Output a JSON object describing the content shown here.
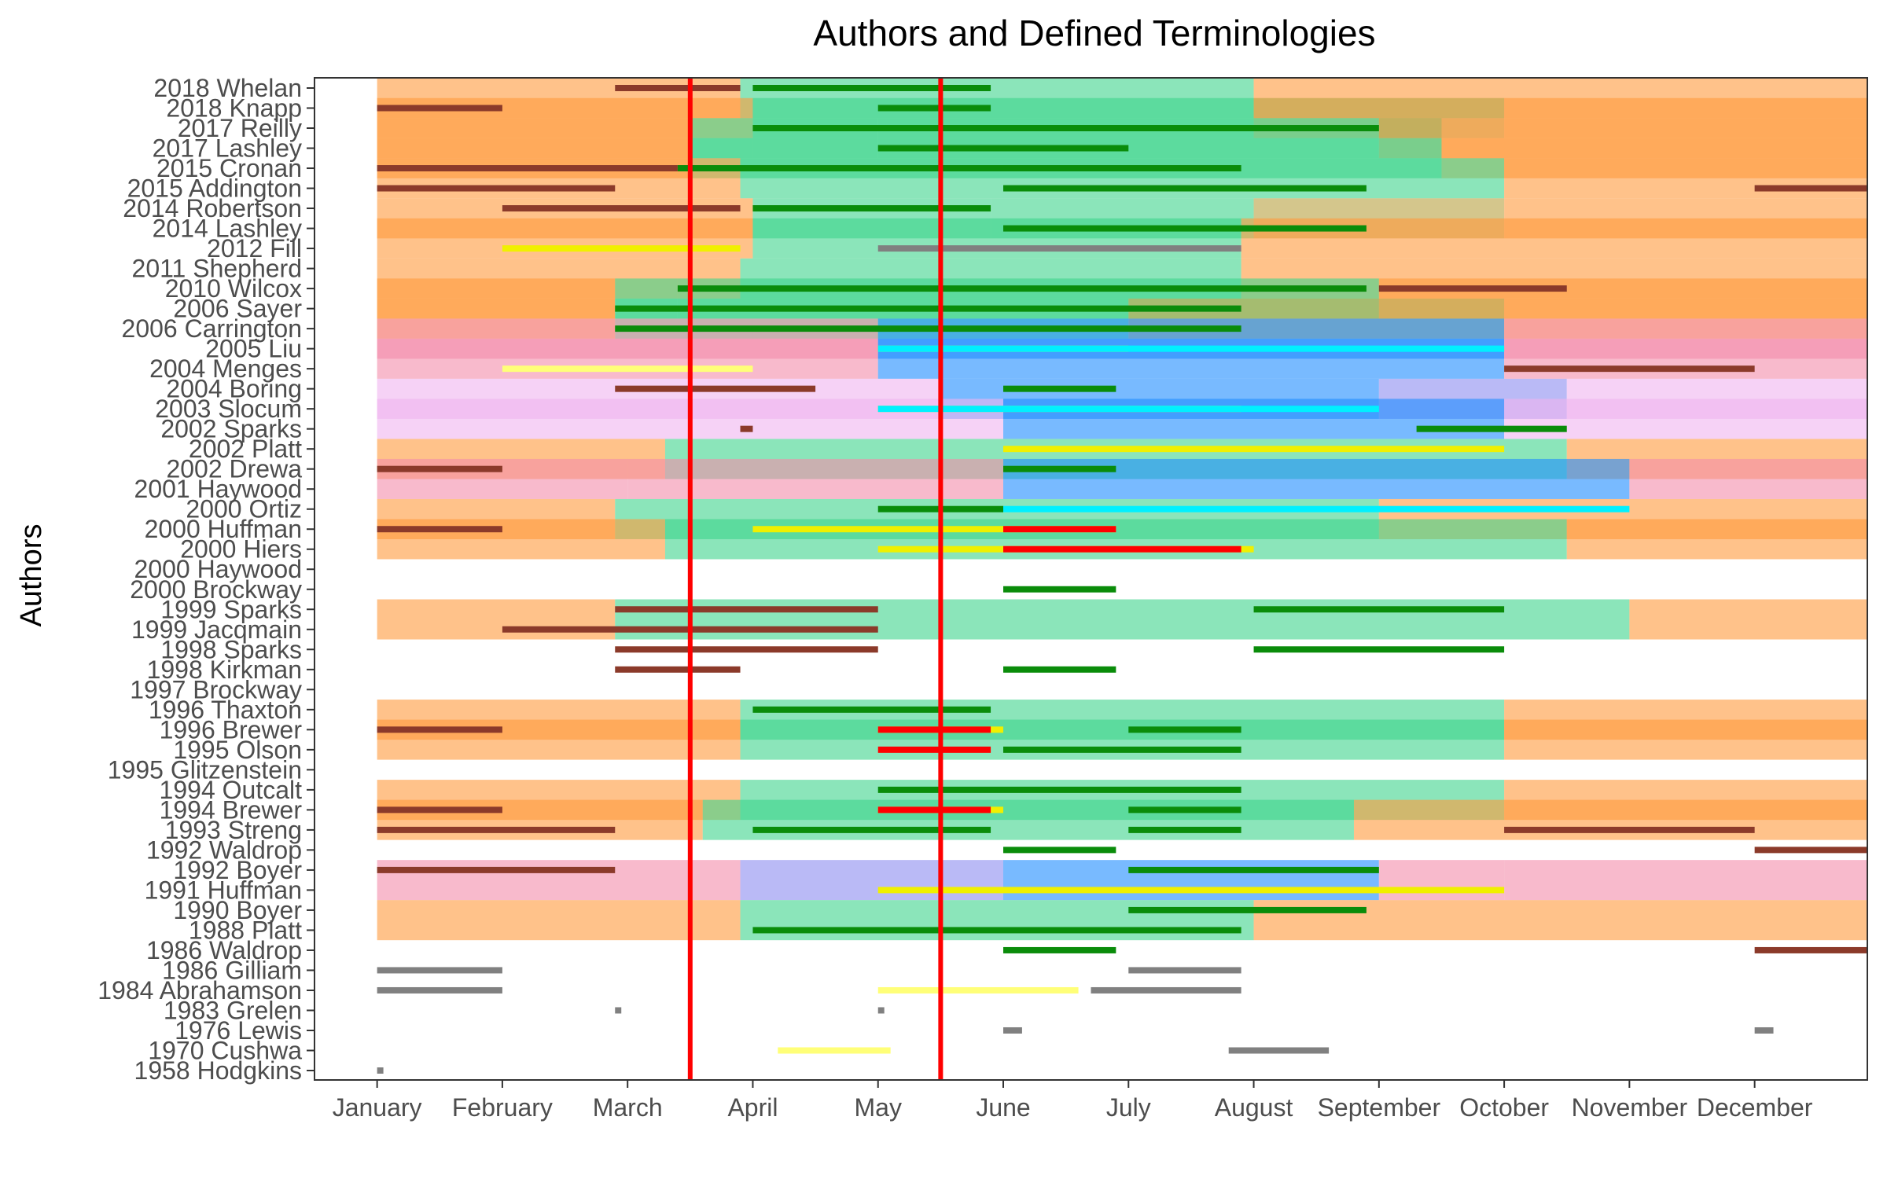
{
  "chart_data": {
    "type": "gantt",
    "title": "Authors and Defined Terminologies",
    "xlabel": "",
    "ylabel": "Authors",
    "grid": false,
    "legend": "none",
    "x_ticks": [
      "January",
      "February",
      "March",
      "April",
      "May",
      "June",
      "July",
      "August",
      "September",
      "October",
      "November",
      "December"
    ],
    "y_categories": [
      "2018 Whelan",
      "2018 Knapp",
      "2017 Reilly",
      "2017 Lashley",
      "2015 Cronan",
      "2015 Addington",
      "2014 Robertson",
      "2014 Lashley",
      "2012 Fill",
      "2011 Shepherd",
      "2010 Wilcox",
      "2006 Sayer",
      "2006 Carrington",
      "2005 Liu",
      "2004 Menges",
      "2004 Boring",
      "2003 Slocum",
      "2002 Sparks",
      "2002 Platt",
      "2002 Drewa",
      "2001 Haywood",
      "2000 Ortiz",
      "2000 Huffman",
      "2000 Hiers",
      "2000 Haywood",
      "2000 Brockway",
      "1999 Sparks",
      "1999 Jacqmain",
      "1998 Sparks",
      "1998 Kirkman",
      "1997 Brockway",
      "1996 Thaxton",
      "1996 Brewer",
      "1995 Olson",
      "1995 Glitzenstein",
      "1994 Outcalt",
      "1994 Brewer",
      "1993 Streng",
      "1992 Waldrop",
      "1992 Boyer",
      "1991 Huffman",
      "1990 Boyer",
      "1988 Platt",
      "1986 Waldrop",
      "1986 Gilliam",
      "1984 Abrahamson",
      "1983 Grelen",
      "1976 Lewis",
      "1970 Cushwa",
      "1958 Hodgkins"
    ],
    "xlim": [
      0.5,
      12.9
    ],
    "reference_lines": [
      3.5,
      5.5
    ],
    "colors": {
      "orange": "#ff9a3c",
      "green": "#3ed48c",
      "blue": "#1e8cff",
      "pink": "#f48caa",
      "violet": "#f0b4f0",
      "darkred": "#8b3a2a",
      "darkgreen": "#0a8c0a",
      "yellow": "#f0f000",
      "red": "#ff0000",
      "cyan": "#00f0ff",
      "gray": "#808080",
      "lightyellow": "#ffff78",
      "mustard": "#b8a040",
      "periwinkle": "#8c8cf0",
      "refline": "#ff0000"
    },
    "bands": [
      {
        "y0": 0,
        "y1": 2,
        "segments": [
          [
            1,
            3.9,
            "orange"
          ],
          [
            3.9,
            8.0,
            "green"
          ],
          [
            8.0,
            13.0,
            "orange"
          ]
        ]
      },
      {
        "y0": 1,
        "y1": 3,
        "segments": [
          [
            1,
            4.0,
            "orange"
          ],
          [
            4.0,
            8.0,
            "green"
          ],
          [
            8.0,
            10.0,
            "mustard"
          ],
          [
            10.0,
            13.0,
            "orange"
          ]
        ]
      },
      {
        "y0": 2,
        "y1": 4,
        "segments": [
          [
            1,
            3.5,
            "orange"
          ],
          [
            3.5,
            4.0,
            "green"
          ],
          [
            4.0,
            5.0,
            "green"
          ],
          [
            5.0,
            9.0,
            "green"
          ],
          [
            9.0,
            9.5,
            "mustard"
          ],
          [
            9.5,
            13.0,
            "orange"
          ]
        ]
      },
      {
        "y0": 3,
        "y1": 5,
        "segments": [
          [
            1,
            3.5,
            "orange"
          ],
          [
            3.5,
            9.5,
            "green"
          ],
          [
            9.5,
            13.0,
            "orange"
          ]
        ]
      },
      {
        "y0": 4,
        "y1": 6,
        "segments": [
          [
            1,
            3.9,
            "orange"
          ],
          [
            3.9,
            10.0,
            "green"
          ],
          [
            10.0,
            13.0,
            "orange"
          ]
        ]
      },
      {
        "y0": 6,
        "y1": 8,
        "segments": [
          [
            1,
            4.0,
            "orange"
          ],
          [
            4.0,
            5.9,
            "green"
          ],
          [
            5.9,
            8.0,
            "green"
          ],
          [
            8.0,
            10.0,
            "mustard"
          ],
          [
            10.0,
            13.0,
            "orange"
          ]
        ]
      },
      {
        "y0": 7,
        "y1": 9,
        "segments": [
          [
            1,
            4.0,
            "orange"
          ],
          [
            4.0,
            7.9,
            "green"
          ],
          [
            7.9,
            13.0,
            "orange"
          ]
        ]
      },
      {
        "y0": 9,
        "y1": 11,
        "segments": [
          [
            1,
            3.9,
            "orange"
          ],
          [
            3.9,
            7.9,
            "green"
          ],
          [
            7.9,
            13.0,
            "orange"
          ]
        ]
      },
      {
        "y0": 10,
        "y1": 12,
        "segments": [
          [
            1,
            2.9,
            "orange"
          ],
          [
            2.9,
            3.4,
            "green"
          ],
          [
            3.4,
            9.0,
            "green"
          ],
          [
            9.0,
            13.0,
            "orange"
          ]
        ]
      },
      {
        "y0": 11,
        "y1": 13,
        "segments": [
          [
            1,
            2.9,
            "orange"
          ],
          [
            2.9,
            7.0,
            "green"
          ],
          [
            7.0,
            10.0,
            "mustard"
          ],
          [
            10.0,
            13.0,
            "orange"
          ]
        ]
      },
      {
        "y0": 12,
        "y1": 14,
        "segments": [
          [
            1,
            4.0,
            "pink"
          ],
          [
            4.0,
            5.0,
            "pink"
          ],
          [
            5.0,
            10.0,
            "blue"
          ],
          [
            10.0,
            13.0,
            "pink"
          ]
        ]
      },
      {
        "y0": 13,
        "y1": 15,
        "segments": [
          [
            1,
            5.0,
            "pink"
          ],
          [
            5.0,
            10.0,
            "blue"
          ],
          [
            10.0,
            13.0,
            "pink"
          ]
        ]
      },
      {
        "y0": 15,
        "y1": 17,
        "segments": [
          [
            1,
            5.5,
            "violet"
          ],
          [
            5.5,
            9.0,
            "blue"
          ],
          [
            9.0,
            10.5,
            "periwinkle"
          ],
          [
            10.5,
            13.0,
            "violet"
          ]
        ]
      },
      {
        "y0": 16,
        "y1": 18,
        "segments": [
          [
            1,
            6.0,
            "violet"
          ],
          [
            6.0,
            10.0,
            "blue"
          ],
          [
            10.0,
            13.0,
            "violet"
          ]
        ]
      },
      {
        "y0": 18,
        "y1": 20,
        "segments": [
          [
            1,
            3.3,
            "orange"
          ],
          [
            3.3,
            10.5,
            "green"
          ],
          [
            10.5,
            13.0,
            "orange"
          ]
        ]
      },
      {
        "y0": 19,
        "y1": 21,
        "segments": [
          [
            1,
            3.0,
            "pink"
          ],
          [
            3.0,
            6.0,
            "pink"
          ],
          [
            6.0,
            11.0,
            "blue"
          ],
          [
            11.0,
            13.0,
            "pink"
          ]
        ]
      },
      {
        "y0": 21,
        "y1": 23,
        "segments": [
          [
            1,
            2.9,
            "orange"
          ],
          [
            2.9,
            9.0,
            "green"
          ],
          [
            9.0,
            13.0,
            "orange"
          ]
        ]
      },
      {
        "y0": 22,
        "y1": 24,
        "segments": [
          [
            1,
            3.3,
            "orange"
          ],
          [
            3.3,
            10.5,
            "green"
          ],
          [
            10.5,
            13.0,
            "orange"
          ]
        ]
      },
      {
        "y0": 26,
        "y1": 28,
        "segments": [
          [
            1,
            2.9,
            "orange"
          ],
          [
            2.9,
            11.0,
            "green"
          ],
          [
            11.0,
            13.0,
            "orange"
          ]
        ]
      },
      {
        "y0": 31,
        "y1": 33,
        "segments": [
          [
            1,
            3.9,
            "orange"
          ],
          [
            3.9,
            10.0,
            "green"
          ],
          [
            10.0,
            13.0,
            "orange"
          ]
        ]
      },
      {
        "y0": 32,
        "y1": 34,
        "segments": [
          [
            1,
            3.9,
            "orange"
          ],
          [
            3.9,
            10.0,
            "green"
          ],
          [
            10.0,
            13.0,
            "orange"
          ]
        ]
      },
      {
        "y0": 35,
        "y1": 37,
        "segments": [
          [
            1,
            3.9,
            "orange"
          ],
          [
            3.9,
            10.0,
            "green"
          ],
          [
            10.0,
            13.0,
            "orange"
          ]
        ]
      },
      {
        "y0": 36,
        "y1": 38,
        "segments": [
          [
            1,
            3.6,
            "orange"
          ],
          [
            3.6,
            8.8,
            "green"
          ],
          [
            8.8,
            13.0,
            "orange"
          ]
        ]
      },
      {
        "y0": 39,
        "y1": 41,
        "segments": [
          [
            1,
            3.9,
            "pink"
          ],
          [
            3.9,
            6.0,
            "periwinkle"
          ],
          [
            6.0,
            9.0,
            "blue"
          ],
          [
            9.0,
            10.0,
            "pink"
          ],
          [
            10.0,
            13.0,
            "pink"
          ]
        ]
      },
      {
        "y0": 41,
        "y1": 43,
        "segments": [
          [
            1,
            3.9,
            "orange"
          ],
          [
            3.9,
            8.0,
            "green"
          ],
          [
            8.0,
            13.0,
            "orange"
          ]
        ]
      }
    ],
    "lines": [
      {
        "y": 0,
        "x0": 2.9,
        "x1": 3.9,
        "color": "darkred"
      },
      {
        "y": 0,
        "x0": 4.0,
        "x1": 5.9,
        "color": "darkgreen"
      },
      {
        "y": 1,
        "x0": 1.0,
        "x1": 2.0,
        "color": "darkred"
      },
      {
        "y": 1,
        "x0": 5.0,
        "x1": 5.9,
        "color": "darkgreen"
      },
      {
        "y": 2,
        "x0": 4.0,
        "x1": 9.0,
        "color": "darkgreen"
      },
      {
        "y": 3,
        "x0": 5.0,
        "x1": 7.0,
        "color": "darkgreen"
      },
      {
        "y": 4,
        "x0": 1.0,
        "x1": 3.4,
        "color": "darkred"
      },
      {
        "y": 4,
        "x0": 3.4,
        "x1": 7.9,
        "color": "darkgreen"
      },
      {
        "y": 5,
        "x0": 1.0,
        "x1": 2.9,
        "color": "darkred"
      },
      {
        "y": 5,
        "x0": 6.0,
        "x1": 8.9,
        "color": "darkgreen"
      },
      {
        "y": 5,
        "x0": 12.0,
        "x1": 13.0,
        "color": "darkred"
      },
      {
        "y": 6,
        "x0": 2.0,
        "x1": 3.9,
        "color": "darkred"
      },
      {
        "y": 6,
        "x0": 4.0,
        "x1": 5.9,
        "color": "darkgreen"
      },
      {
        "y": 7,
        "x0": 6.0,
        "x1": 8.9,
        "color": "darkgreen"
      },
      {
        "y": 8,
        "x0": 2.0,
        "x1": 3.9,
        "color": "yellow"
      },
      {
        "y": 8,
        "x0": 5.0,
        "x1": 7.9,
        "color": "gray"
      },
      {
        "y": 10,
        "x0": 3.4,
        "x1": 8.9,
        "color": "darkgreen"
      },
      {
        "y": 10,
        "x0": 9.0,
        "x1": 10.5,
        "color": "darkred"
      },
      {
        "y": 11,
        "x0": 2.9,
        "x1": 7.9,
        "color": "darkgreen"
      },
      {
        "y": 12,
        "x0": 2.9,
        "x1": 7.9,
        "color": "darkgreen"
      },
      {
        "y": 13,
        "x0": 5.0,
        "x1": 7.0,
        "color": "yellow"
      },
      {
        "y": 13,
        "x0": 5.0,
        "x1": 10.0,
        "color": "cyan"
      },
      {
        "y": 14,
        "x0": 2.0,
        "x1": 4.0,
        "color": "lightyellow"
      },
      {
        "y": 14,
        "x0": 10.0,
        "x1": 12.0,
        "color": "darkred"
      },
      {
        "y": 15,
        "x0": 2.9,
        "x1": 4.5,
        "color": "darkred"
      },
      {
        "y": 15,
        "x0": 6.0,
        "x1": 6.9,
        "color": "darkgreen"
      },
      {
        "y": 16,
        "x0": 5.0,
        "x1": 7.9,
        "color": "yellow"
      },
      {
        "y": 16,
        "x0": 5.0,
        "x1": 9.0,
        "color": "cyan"
      },
      {
        "y": 17,
        "x0": 3.9,
        "x1": 4.0,
        "color": "darkred"
      },
      {
        "y": 17,
        "x0": 9.3,
        "x1": 10.5,
        "color": "darkgreen"
      },
      {
        "y": 18,
        "x0": 6.0,
        "x1": 10.0,
        "color": "yellow"
      },
      {
        "y": 19,
        "x0": 1.0,
        "x1": 2.0,
        "color": "darkred"
      },
      {
        "y": 19,
        "x0": 6.0,
        "x1": 6.9,
        "color": "darkgreen"
      },
      {
        "y": 21,
        "x0": 5.0,
        "x1": 6.0,
        "color": "darkgreen"
      },
      {
        "y": 21,
        "x0": 6.0,
        "x1": 11.0,
        "color": "cyan"
      },
      {
        "y": 22,
        "x0": 1.0,
        "x1": 2.0,
        "color": "darkred"
      },
      {
        "y": 22,
        "x0": 4.0,
        "x1": 6.9,
        "color": "yellow"
      },
      {
        "y": 22,
        "x0": 6.0,
        "x1": 6.9,
        "color": "red"
      },
      {
        "y": 23,
        "x0": 5.0,
        "x1": 8.0,
        "color": "yellow"
      },
      {
        "y": 23,
        "x0": 6.0,
        "x1": 7.9,
        "color": "red"
      },
      {
        "y": 25,
        "x0": 6.0,
        "x1": 6.9,
        "color": "darkgreen"
      },
      {
        "y": 26,
        "x0": 2.9,
        "x1": 5.0,
        "color": "darkred"
      },
      {
        "y": 26,
        "x0": 8.0,
        "x1": 10.0,
        "color": "darkgreen"
      },
      {
        "y": 27,
        "x0": 2.0,
        "x1": 5.0,
        "color": "darkred"
      },
      {
        "y": 28,
        "x0": 2.9,
        "x1": 5.0,
        "color": "darkred"
      },
      {
        "y": 28,
        "x0": 8.0,
        "x1": 10.0,
        "color": "darkgreen"
      },
      {
        "y": 29,
        "x0": 2.9,
        "x1": 3.9,
        "color": "darkred"
      },
      {
        "y": 29,
        "x0": 6.0,
        "x1": 6.9,
        "color": "darkgreen"
      },
      {
        "y": 31,
        "x0": 4.0,
        "x1": 5.9,
        "color": "darkgreen"
      },
      {
        "y": 32,
        "x0": 1.0,
        "x1": 2.0,
        "color": "darkred"
      },
      {
        "y": 32,
        "x0": 5.0,
        "x1": 6.0,
        "color": "yellow"
      },
      {
        "y": 32,
        "x0": 5.0,
        "x1": 5.9,
        "color": "red"
      },
      {
        "y": 32,
        "x0": 7.0,
        "x1": 7.9,
        "color": "darkgreen"
      },
      {
        "y": 33,
        "x0": 5.0,
        "x1": 5.9,
        "color": "red"
      },
      {
        "y": 33,
        "x0": 6.0,
        "x1": 7.9,
        "color": "darkgreen"
      },
      {
        "y": 35,
        "x0": 5.0,
        "x1": 7.9,
        "color": "darkgreen"
      },
      {
        "y": 36,
        "x0": 1.0,
        "x1": 2.0,
        "color": "darkred"
      },
      {
        "y": 36,
        "x0": 5.0,
        "x1": 6.0,
        "color": "yellow"
      },
      {
        "y": 36,
        "x0": 5.0,
        "x1": 5.9,
        "color": "red"
      },
      {
        "y": 36,
        "x0": 7.0,
        "x1": 7.9,
        "color": "darkgreen"
      },
      {
        "y": 37,
        "x0": 1.0,
        "x1": 2.9,
        "color": "darkred"
      },
      {
        "y": 37,
        "x0": 4.0,
        "x1": 5.9,
        "color": "darkgreen"
      },
      {
        "y": 37,
        "x0": 7.0,
        "x1": 7.9,
        "color": "darkgreen"
      },
      {
        "y": 37,
        "x0": 10.0,
        "x1": 12.0,
        "color": "darkred"
      },
      {
        "y": 38,
        "x0": 6.0,
        "x1": 6.9,
        "color": "darkgreen"
      },
      {
        "y": 38,
        "x0": 12.0,
        "x1": 13.0,
        "color": "darkred"
      },
      {
        "y": 39,
        "x0": 1.0,
        "x1": 2.9,
        "color": "darkred"
      },
      {
        "y": 39,
        "x0": 7.0,
        "x1": 9.0,
        "color": "darkgreen"
      },
      {
        "y": 40,
        "x0": 5.0,
        "x1": 10.0,
        "color": "yellow"
      },
      {
        "y": 41,
        "x0": 7.0,
        "x1": 8.9,
        "color": "darkgreen"
      },
      {
        "y": 42,
        "x0": 4.0,
        "x1": 7.9,
        "color": "darkgreen"
      },
      {
        "y": 43,
        "x0": 6.0,
        "x1": 6.9,
        "color": "darkgreen"
      },
      {
        "y": 43,
        "x0": 12.0,
        "x1": 13.0,
        "color": "darkred"
      },
      {
        "y": 44,
        "x0": 1.0,
        "x1": 2.0,
        "color": "gray"
      },
      {
        "y": 44,
        "x0": 7.0,
        "x1": 7.9,
        "color": "gray"
      },
      {
        "y": 45,
        "x0": 1.0,
        "x1": 2.0,
        "color": "gray"
      },
      {
        "y": 45,
        "x0": 5.0,
        "x1": 6.6,
        "color": "lightyellow"
      },
      {
        "y": 45,
        "x0": 6.7,
        "x1": 7.9,
        "color": "gray"
      },
      {
        "y": 46,
        "x0": 2.9,
        "x1": 2.95,
        "color": "gray"
      },
      {
        "y": 46,
        "x0": 5.0,
        "x1": 5.05,
        "color": "gray"
      },
      {
        "y": 47,
        "x0": 6.0,
        "x1": 6.15,
        "color": "gray"
      },
      {
        "y": 47,
        "x0": 12.0,
        "x1": 12.15,
        "color": "gray"
      },
      {
        "y": 48,
        "x0": 4.2,
        "x1": 5.1,
        "color": "lightyellow"
      },
      {
        "y": 48,
        "x0": 7.8,
        "x1": 8.6,
        "color": "gray"
      },
      {
        "y": 49,
        "x0": 1.0,
        "x1": 1.05,
        "color": "gray"
      }
    ]
  }
}
